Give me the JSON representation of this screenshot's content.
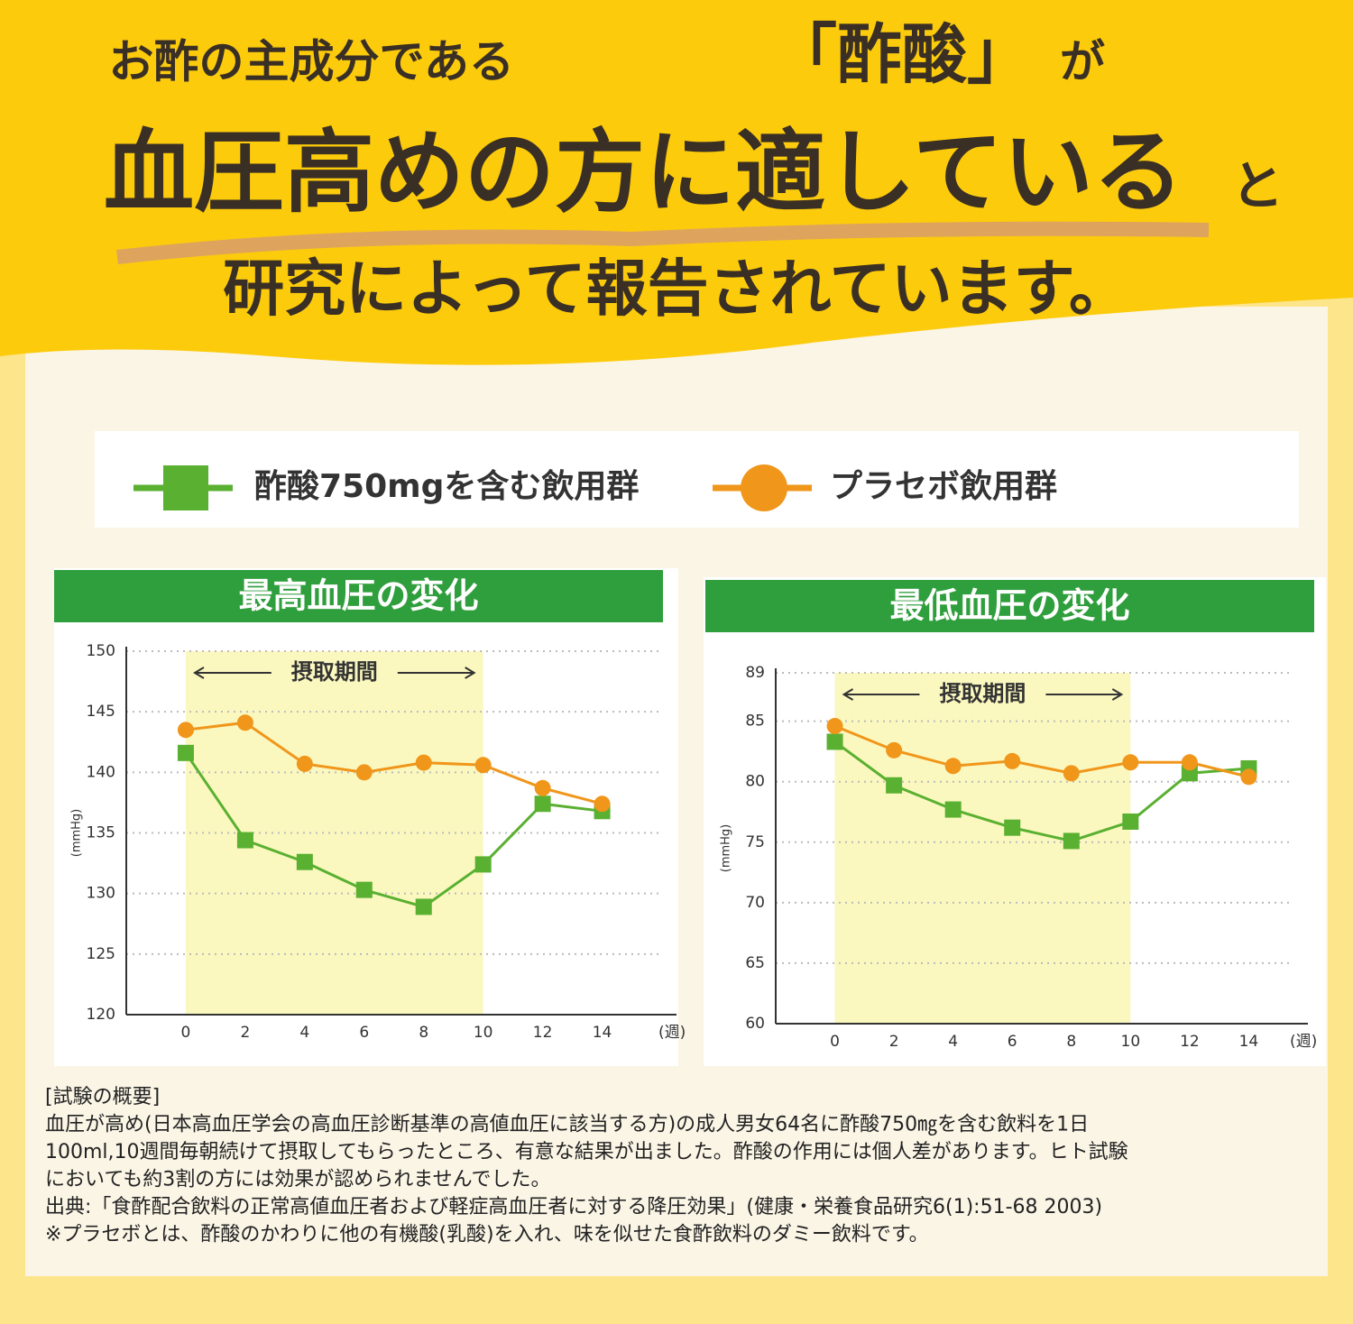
{
  "header": {
    "line1": [
      "お酢の主成分である",
      "「酢酸」",
      "が"
    ],
    "line2": [
      "血圧高めの方に適している",
      "と"
    ],
    "line3": "研究によって報告されています。"
  },
  "chart_data": [
    {
      "type": "line",
      "title": "最高血圧の変化",
      "y_label": "(mmHg)",
      "x_label": "(週)",
      "x": [
        0,
        2,
        4,
        6,
        8,
        10,
        12,
        14
      ],
      "xlim": [
        -2,
        16.5
      ],
      "xticks": [
        0,
        2,
        4,
        6,
        8,
        10,
        12,
        14
      ],
      "ylim": [
        120,
        150
      ],
      "yticks": [
        120,
        125,
        130,
        135,
        140,
        145,
        150
      ],
      "grid": true,
      "highlight": {
        "from": 0,
        "to": 10,
        "label": "摂取期間"
      },
      "series": [
        {
          "name": "酢酸750mgを含む飲用群",
          "color": "#5ab031",
          "marker": "square",
          "values": [
            141.6,
            134.4,
            132.6,
            130.3,
            128.9,
            132.4,
            137.4,
            136.8
          ]
        },
        {
          "name": "プラセボ飲用群",
          "color": "#f0961a",
          "marker": "circle",
          "values": [
            143.5,
            144.1,
            140.7,
            140.0,
            140.8,
            140.6,
            138.7,
            137.4
          ]
        }
      ]
    },
    {
      "type": "line",
      "title": "最低血圧の変化",
      "y_label": "(mmHg)",
      "x_label": "(週)",
      "x": [
        0,
        2,
        4,
        6,
        8,
        10,
        12,
        14
      ],
      "xlim": [
        -2,
        16
      ],
      "xticks": [
        0,
        2,
        4,
        6,
        8,
        10,
        12,
        14
      ],
      "ylim": [
        60,
        89
      ],
      "yticks": [
        60,
        65,
        70,
        75,
        80,
        85,
        89
      ],
      "grid": true,
      "highlight": {
        "from": 0,
        "to": 10,
        "label": "摂取期間"
      },
      "series": [
        {
          "name": "酢酸750mgを含む飲用群",
          "color": "#5ab031",
          "marker": "square",
          "values": [
            83.3,
            79.7,
            77.7,
            76.2,
            75.1,
            76.7,
            80.7,
            81.1
          ]
        },
        {
          "name": "プラセボ飲用群",
          "color": "#f0961a",
          "marker": "circle",
          "values": [
            84.6,
            82.6,
            81.3,
            81.7,
            80.7,
            81.6,
            81.6,
            80.4
          ]
        }
      ]
    }
  ],
  "notes": [
    "[試験の概要]",
    "血圧が高め(日本高血圧学会の高血圧診断基準の高値血圧に該当する方)の成人男女64名に酢酸750㎎を含む飲料を1日",
    "100ml,10週間毎朝続けて摂取してもらったところ、有意な結果が出ました。酢酸の作用には個人差があります。ヒト試験",
    "においても約3割の方には効果が認められませんでした。",
    "出典:「食酢配合飲料の正常高値血圧者および軽症高血圧者に対する降圧効果」(健康・栄養食品研究6(1):51-68 2003)",
    "※プラセボとは、酢酸のかわりに他の有機酸(乳酸)を入れ、味を似せた食酢飲料のダミー飲料です。"
  ]
}
